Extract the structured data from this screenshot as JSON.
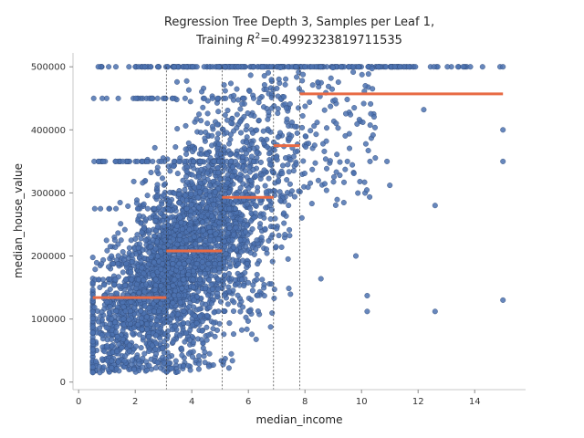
{
  "chart_data": {
    "type": "scatter",
    "title_line1": "Regression Tree Depth 3, Samples per Leaf 1,",
    "title_line2_prefix": "Training ",
    "title_r": "R",
    "title_sup": "2",
    "title_value": "=0.4992323819711535",
    "xlabel": "median_income",
    "ylabel": "median_house_value",
    "xlim": [
      -0.2,
      15.8
    ],
    "ylim": [
      -12000,
      522000
    ],
    "xticks": [
      0,
      2,
      4,
      6,
      8,
      10,
      12,
      14
    ],
    "xtick_labels": [
      "0",
      "2",
      "4",
      "6",
      "8",
      "10",
      "12",
      "14"
    ],
    "yticks": [
      0,
      100000,
      200000,
      300000,
      400000,
      500000
    ],
    "ytick_labels": [
      "0",
      "100000",
      "200000",
      "300000",
      "400000",
      "500000"
    ],
    "point_color": "#4c72b0",
    "step_color": "#e86a44",
    "split_color": "#333333",
    "splits": [
      3.1,
      5.07,
      6.89,
      7.82
    ],
    "split_ymax": 500000,
    "leaves": [
      {
        "x0": 0.5,
        "x1": 3.1,
        "value": 134000
      },
      {
        "x0": 3.1,
        "x1": 5.07,
        "value": 208000
      },
      {
        "x0": 5.07,
        "x1": 6.89,
        "value": 293000
      },
      {
        "x0": 6.89,
        "x1": 7.82,
        "value": 375000
      },
      {
        "x0": 7.82,
        "x1": 15.0,
        "value": 457000
      }
    ],
    "outlier_points": [
      [
        15.0,
        500001
      ],
      [
        15.0,
        400000
      ],
      [
        15.0,
        350000
      ],
      [
        15.0,
        130000
      ],
      [
        12.6,
        112000
      ],
      [
        12.6,
        280000
      ],
      [
        10.2,
        137000
      ],
      [
        10.2,
        112000
      ],
      [
        9.8,
        200000
      ],
      [
        11.0,
        312000
      ],
      [
        12.2,
        432000
      ],
      [
        10.9,
        350000
      ],
      [
        10.3,
        350000
      ],
      [
        9.5,
        350000
      ]
    ],
    "cluster_density": "very high (approx. 20,000 points), centered along median_income 2–6"
  }
}
